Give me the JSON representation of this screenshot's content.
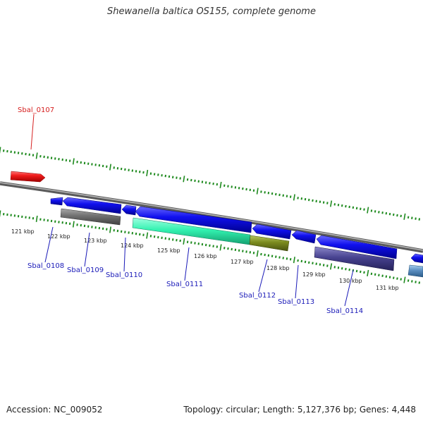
{
  "title": "Shewanella baltica OS155, complete genome",
  "footer": {
    "accession": "Accession: NC_009052",
    "summary": "Topology: circular; Length: 5,127,376 bp; Genes: 4,448"
  },
  "kbp_labels": [
    "121 kbp",
    "122 kbp",
    "123 kbp",
    "124 kbp",
    "125 kbp",
    "126 kbp",
    "127 kbp",
    "128 kbp",
    "129 kbp",
    "130 kbp",
    "131 kbp"
  ],
  "gene_labels": [
    {
      "text": "Sbal_0107",
      "color": "#d62020"
    },
    {
      "text": "Sbal_0108",
      "color": "#1a1ab8"
    },
    {
      "text": "Sbal_0109",
      "color": "#1a1ab8"
    },
    {
      "text": "Sbal_0110",
      "color": "#1a1ab8"
    },
    {
      "text": "Sbal_0111",
      "color": "#1a1ab8"
    },
    {
      "text": "Sbal_0112",
      "color": "#1a1ab8"
    },
    {
      "text": "Sbal_0113",
      "color": "#1a1ab8"
    },
    {
      "text": "Sbal_0114",
      "color": "#1a1ab8"
    }
  ],
  "colors": {
    "backbone": "#808080",
    "tick": "#1e8a1e",
    "forward_gene": "#e81c1c",
    "reverse_gene": "#1010e6",
    "feature_gray": "#6f6f6f",
    "feature_cyan": "#33f2b0",
    "feature_olive": "#7a8a1e",
    "feature_purple": "#47428f",
    "feature_lightblue": "#5a8ec0"
  }
}
